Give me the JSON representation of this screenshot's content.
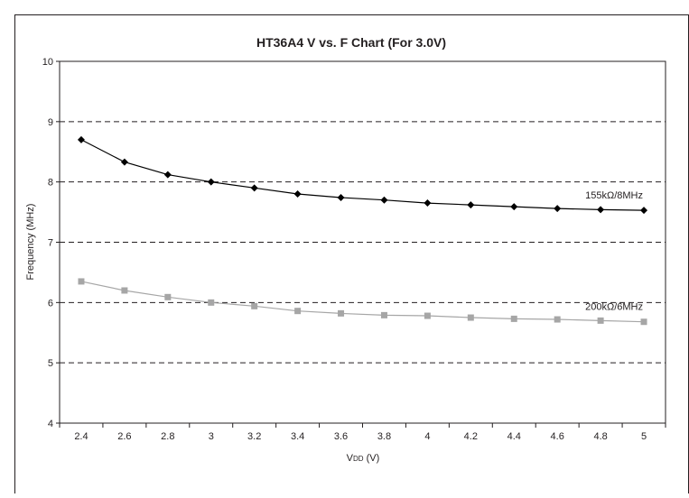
{
  "chart_data": {
    "type": "line",
    "title": "HT36A4 V vs. F Chart (For 3.0V)",
    "xlabel": "VDD (V)",
    "ylabel": "Frequency (MHz)",
    "x": [
      2.4,
      2.6,
      2.8,
      3.0,
      3.2,
      3.4,
      3.6,
      3.8,
      4.0,
      4.2,
      4.4,
      4.6,
      4.8,
      5.0
    ],
    "x_tick_labels": [
      "2.4",
      "2.6",
      "2.8",
      "3",
      "3.2",
      "3.4",
      "3.6",
      "3.8",
      "4",
      "4.2",
      "4.4",
      "4.6",
      "4.8",
      "5"
    ],
    "y_tick_labels": [
      "4",
      "5",
      "6",
      "7",
      "8",
      "9",
      "10"
    ],
    "ylim": [
      4,
      10
    ],
    "grid": "horizontal dashed",
    "series": [
      {
        "name": "155kΩ/8MHz",
        "color": "#000000",
        "marker": "diamond",
        "values": [
          8.7,
          8.33,
          8.12,
          8.0,
          7.9,
          7.8,
          7.74,
          7.7,
          7.65,
          7.62,
          7.59,
          7.56,
          7.54,
          7.53
        ]
      },
      {
        "name": "200kΩ/6MHz",
        "color": "#a6a6a6",
        "marker": "square",
        "values": [
          6.35,
          6.2,
          6.09,
          6.0,
          5.94,
          5.86,
          5.82,
          5.79,
          5.78,
          5.75,
          5.73,
          5.72,
          5.7,
          5.68
        ]
      }
    ]
  }
}
